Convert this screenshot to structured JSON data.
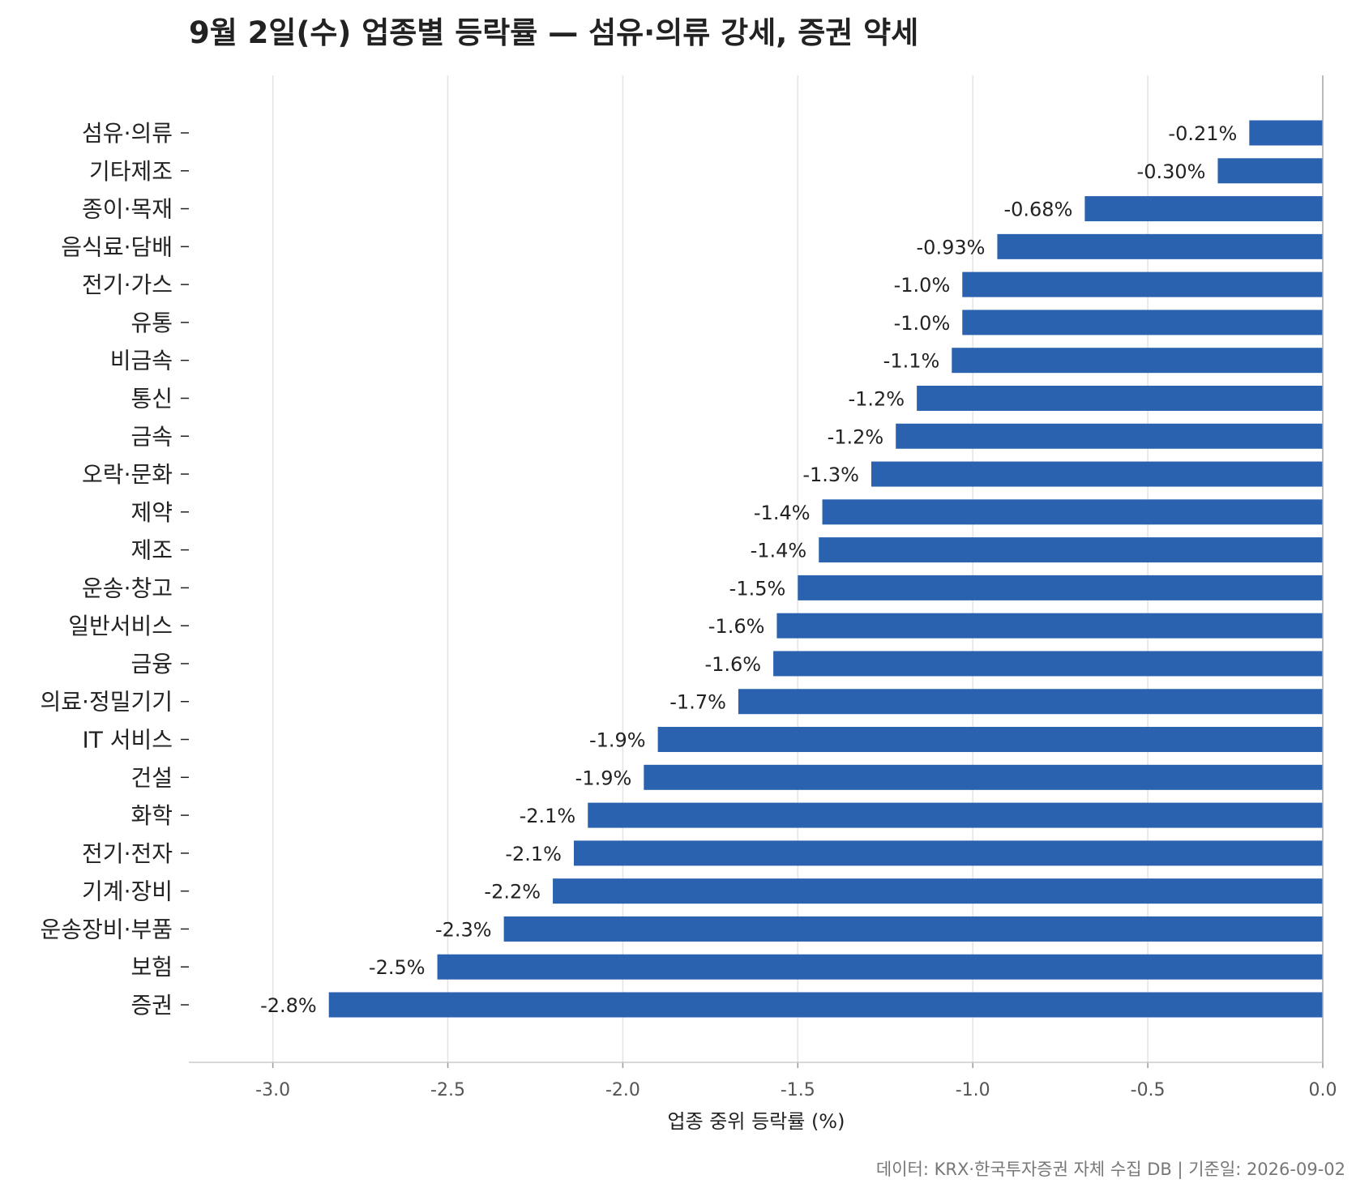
{
  "chart_data": {
    "type": "bar",
    "orientation": "horizontal",
    "title": "9월 2일(수) 업종별 등락률 — 섬유·의류 강세, 증권 약세",
    "xlabel": "업종 중위 등락률 (%)",
    "ylabel": "",
    "xlim": [
      -3.24,
      0.0
    ],
    "xticks": [
      -3.0,
      -2.5,
      -2.0,
      -1.5,
      -1.0,
      -0.5,
      0.0
    ],
    "xtick_labels": [
      "-3.0",
      "-2.5",
      "-2.0",
      "-1.5",
      "-1.0",
      "-0.5",
      "0.0"
    ],
    "grid": "vertical",
    "bar_color": "#2a62b0",
    "categories": [
      "섬유·의류",
      "기타제조",
      "종이·목재",
      "음식료·담배",
      "전기·가스",
      "유통",
      "비금속",
      "통신",
      "금속",
      "오락·문화",
      "제약",
      "제조",
      "운송·창고",
      "일반서비스",
      "금융",
      "의료·정밀기기",
      "IT 서비스",
      "건설",
      "화학",
      "전기·전자",
      "기계·장비",
      "운송장비·부품",
      "보험",
      "증권"
    ],
    "values": [
      -0.21,
      -0.3,
      -0.68,
      -0.93,
      -1.03,
      -1.03,
      -1.06,
      -1.16,
      -1.22,
      -1.29,
      -1.43,
      -1.44,
      -1.5,
      -1.56,
      -1.57,
      -1.67,
      -1.9,
      -1.94,
      -2.1,
      -2.14,
      -2.2,
      -2.34,
      -2.53,
      -2.84
    ],
    "value_labels": [
      "-0.21%",
      "-0.30%",
      "-0.68%",
      "-0.93%",
      "-1.0%",
      "-1.0%",
      "-1.1%",
      "-1.2%",
      "-1.2%",
      "-1.3%",
      "-1.4%",
      "-1.4%",
      "-1.5%",
      "-1.6%",
      "-1.6%",
      "-1.7%",
      "-1.9%",
      "-1.9%",
      "-2.1%",
      "-2.1%",
      "-2.2%",
      "-2.3%",
      "-2.5%",
      "-2.8%"
    ]
  },
  "source": "데이터: KRX·한국투자증권 자체 수집 DB  |  기준일: 2026-09-02"
}
